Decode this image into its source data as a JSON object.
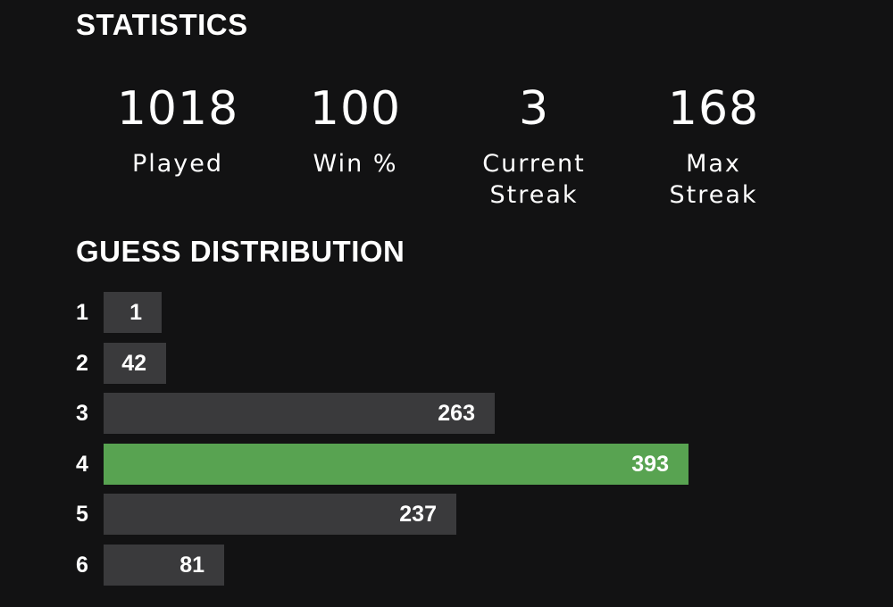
{
  "statistics": {
    "title": "STATISTICS",
    "items": [
      {
        "value": "1018",
        "label": "Played"
      },
      {
        "value": "100",
        "label": "Win %"
      },
      {
        "value": "3",
        "label": "Current\nStreak"
      },
      {
        "value": "168",
        "label": "Max\nStreak"
      }
    ]
  },
  "distribution": {
    "title": "GUESS DISTRIBUTION",
    "max_count": 393,
    "highlight_guess": 4,
    "rows": [
      {
        "guess": "1",
        "count": 1
      },
      {
        "guess": "2",
        "count": 42
      },
      {
        "guess": "3",
        "count": 263
      },
      {
        "guess": "4",
        "count": 393
      },
      {
        "guess": "5",
        "count": 237
      },
      {
        "guess": "6",
        "count": 81
      }
    ]
  },
  "colors": {
    "background": "#121213",
    "bar_default": "#3a3a3c",
    "bar_highlight": "#58a351",
    "text": "#ffffff"
  }
}
